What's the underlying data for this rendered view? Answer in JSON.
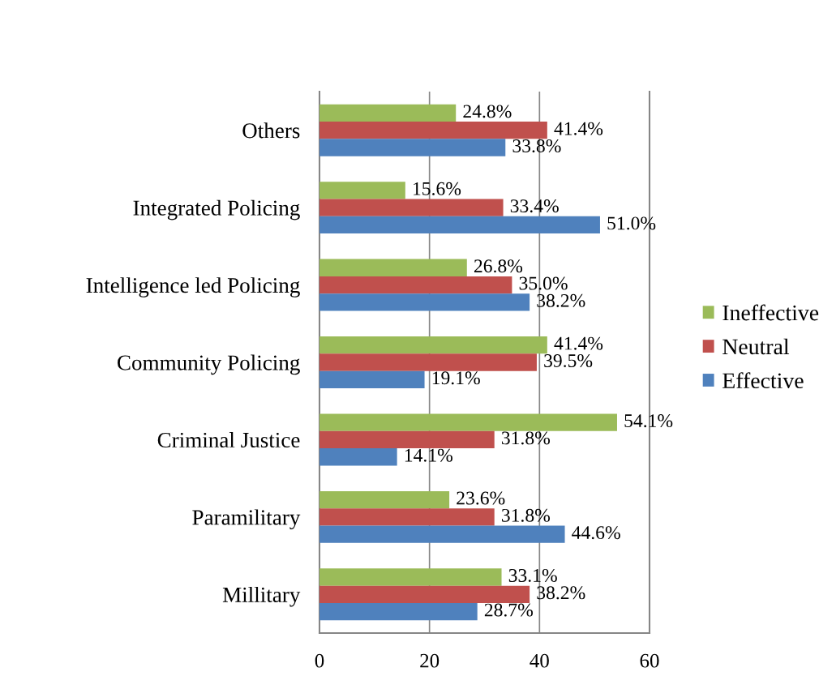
{
  "chart_data": {
    "type": "bar",
    "orientation": "horizontal",
    "categories": [
      "Others",
      "Integrated Policing",
      "Intelligence led Policing",
      "Community Policing",
      "Criminal Justice",
      "Paramilitary",
      "Millitary"
    ],
    "series": [
      {
        "name": "Ineffective",
        "color": "#9bbb59",
        "values": [
          24.8,
          15.6,
          26.8,
          41.4,
          54.1,
          23.6,
          33.1
        ],
        "value_labels": [
          "24.8%",
          "15.6%",
          "26.8%",
          "41.4%",
          "54.1%",
          "23.6%",
          "33.1%"
        ]
      },
      {
        "name": "Neutral",
        "color": "#c0504d",
        "values": [
          41.4,
          33.4,
          35.0,
          39.5,
          31.8,
          31.8,
          38.2
        ],
        "value_labels": [
          "41.4%",
          "33.4%",
          "35.0%",
          "39.5%",
          "31.8%",
          "31.8%",
          "38.2%"
        ]
      },
      {
        "name": "Effective",
        "color": "#4f81bd",
        "values": [
          33.8,
          51.0,
          38.2,
          19.1,
          14.1,
          44.6,
          28.7
        ],
        "value_labels": [
          "33.8%",
          "51.0%",
          "38.2%",
          "19.1%",
          "14.1%",
          "44.6%",
          "28.7%"
        ]
      }
    ],
    "xlim": [
      0,
      60
    ],
    "xticks": [
      0,
      20,
      40,
      60
    ],
    "grid": "x",
    "legend": "right"
  }
}
